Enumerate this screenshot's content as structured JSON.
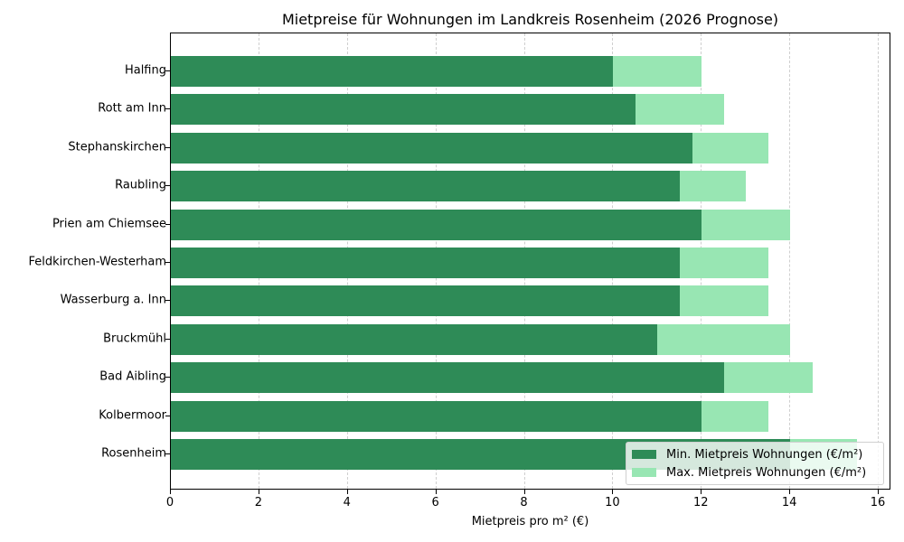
{
  "chart_data": {
    "type": "bar",
    "orientation": "horizontal",
    "title": "Mietpreise für Wohnungen im Landkreis Rosenheim (2026 Prognose)",
    "xlabel": "Mietpreis pro m² (€)",
    "ylabel": "",
    "xlim": [
      0,
      16.3
    ],
    "xticks": [
      "0",
      "2",
      "4",
      "6",
      "8",
      "10",
      "12",
      "14",
      "16"
    ],
    "grid": "x dashed",
    "legend_position": "lower right",
    "categories": [
      "Halfing",
      "Rott am Inn",
      "Stephanskirchen",
      "Raubling",
      "Prien am Chiemsee",
      "Feldkirchen-Westerham",
      "Wasserburg a. Inn",
      "Bruckmühl",
      "Bad Aibling",
      "Kolbermoor",
      "Rosenheim"
    ],
    "series": [
      {
        "name": "Min. Mietpreis Wohnungen (€/m²)",
        "color": "#2e8b57",
        "values": [
          10.0,
          10.5,
          11.8,
          11.5,
          12.0,
          11.5,
          11.5,
          11.0,
          12.5,
          12.0,
          14.0
        ]
      },
      {
        "name": "Max. Mietpreis Wohnungen (€/m²)",
        "color": "#98e6b3",
        "values": [
          12.0,
          12.5,
          13.5,
          13.0,
          14.0,
          13.5,
          13.5,
          14.0,
          14.5,
          13.5,
          15.5
        ]
      }
    ]
  }
}
